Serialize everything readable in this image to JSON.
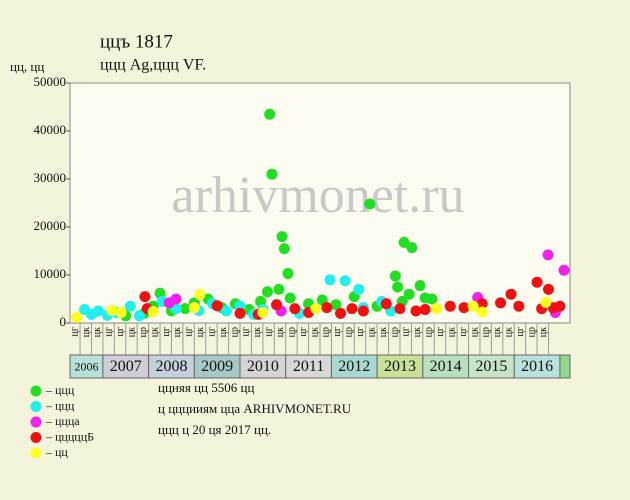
{
  "chart_data": {
    "type": "scatter",
    "title": "ццъ 1817",
    "subtitle": "ццц Ag,ццц VF.",
    "y_label": "цц, цц",
    "watermark": "arhivmonet.ru",
    "xlim": [
      2006.28,
      2017.22
    ],
    "ylim": [
      0,
      50000
    ],
    "yticks": [
      0,
      10000,
      20000,
      30000,
      40000,
      50000
    ],
    "xticks": [
      {
        "value": 2006.5,
        "label": "цг"
      },
      {
        "value": 2006.75,
        "label": "цк"
      },
      {
        "value": 2007.0,
        "label": "цк"
      },
      {
        "value": 2007.25,
        "label": "цг"
      },
      {
        "value": 2007.5,
        "label": "цг"
      },
      {
        "value": 2007.75,
        "label": "цк"
      },
      {
        "value": 2008.0,
        "label": "цр"
      },
      {
        "value": 2008.25,
        "label": "цк"
      },
      {
        "value": 2008.5,
        "label": "цг"
      },
      {
        "value": 2008.75,
        "label": "цк"
      },
      {
        "value": 2009.0,
        "label": "цг"
      },
      {
        "value": 2009.25,
        "label": "цк"
      },
      {
        "value": 2009.5,
        "label": "цг"
      },
      {
        "value": 2009.75,
        "label": "цк"
      },
      {
        "value": 2010.0,
        "label": "цр"
      },
      {
        "value": 2010.25,
        "label": "цг"
      },
      {
        "value": 2010.5,
        "label": "цк"
      },
      {
        "value": 2010.75,
        "label": "цг"
      },
      {
        "value": 2011.0,
        "label": "цк"
      },
      {
        "value": 2011.25,
        "label": "цр"
      },
      {
        "value": 2011.5,
        "label": "цг"
      },
      {
        "value": 2011.75,
        "label": "цк"
      },
      {
        "value": 2012.0,
        "label": "цр"
      },
      {
        "value": 2012.25,
        "label": "цг"
      },
      {
        "value": 2012.5,
        "label": "цр"
      },
      {
        "value": 2012.75,
        "label": "цг"
      },
      {
        "value": 2013.0,
        "label": "цк"
      },
      {
        "value": 2013.25,
        "label": "цк"
      },
      {
        "value": 2013.5,
        "label": "цр"
      },
      {
        "value": 2013.75,
        "label": "цг"
      },
      {
        "value": 2014.0,
        "label": "цк"
      },
      {
        "value": 2014.25,
        "label": "цр"
      },
      {
        "value": 2014.5,
        "label": "цг"
      },
      {
        "value": 2014.75,
        "label": "цк"
      },
      {
        "value": 2015.0,
        "label": "цг"
      },
      {
        "value": 2015.25,
        "label": "цк"
      },
      {
        "value": 2015.5,
        "label": "цр"
      },
      {
        "value": 2015.75,
        "label": "цк"
      },
      {
        "value": 2016.0,
        "label": "цк"
      },
      {
        "value": 2016.25,
        "label": "цг"
      },
      {
        "value": 2016.5,
        "label": "цр"
      },
      {
        "value": 2016.75,
        "label": "цк"
      }
    ],
    "years": [
      2006,
      2007,
      2008,
      2009,
      2010,
      2011,
      2012,
      2013,
      2014,
      2015,
      2016
    ],
    "year_colors": [
      "#b8e0d8",
      "#d0ccd8",
      "#c4d0dc",
      "#a8c8c8",
      "#d4d4d4",
      "#d8d8d8",
      "#a8d8d0",
      "#c8e098",
      "#b8e0c0",
      "#c8e4c8",
      "#b8e0dc"
    ],
    "end_color": "#8ed88e",
    "series": [
      {
        "name": "– ццц",
        "color": "#22dd22",
        "x": [
          2007.5,
          2007.9,
          2008.1,
          2008.25,
          2008.5,
          2008.8,
          2009.0,
          2009.3,
          2009.6,
          2009.9,
          2010.2,
          2010.45,
          2010.6,
          2010.65,
          2010.7,
          2010.85,
          2010.92,
          2010.97,
          2011.05,
          2011.1,
          2011.5,
          2011.8,
          2012.1,
          2012.5,
          2012.84,
          2013.0,
          2013.4,
          2013.45,
          2013.55,
          2013.59,
          2013.7,
          2013.76,
          2013.94,
          2014.05,
          2014.2
        ],
        "values": [
          1500,
          2000,
          3500,
          6200,
          2500,
          3000,
          4200,
          5000,
          3200,
          4000,
          2800,
          4500,
          6500,
          43500,
          31000,
          7000,
          18000,
          15500,
          10300,
          5200,
          4000,
          4800,
          3800,
          5500,
          24800,
          3500,
          9800,
          7500,
          4500,
          16800,
          6000,
          15700,
          7800,
          5200,
          5000
        ]
      },
      {
        "name": "– ццц",
        "color": "#22eeee",
        "x": [
          2006.6,
          2006.75,
          2006.9,
          2007.1,
          2007.3,
          2007.6,
          2007.8,
          2008.3,
          2008.6,
          2009.1,
          2009.4,
          2009.7,
          2010.0,
          2010.3,
          2010.5,
          2011.3,
          2011.97,
          2012.3,
          2012.6,
          2012.7,
          2013.1,
          2013.3
        ],
        "values": [
          2800,
          1800,
          2500,
          1600,
          2200,
          3500,
          1500,
          4500,
          3000,
          2600,
          4000,
          2500,
          3500,
          1800,
          2800,
          2000,
          9000,
          8800,
          7000,
          3200,
          4500,
          2500
        ]
      },
      {
        "name": "– ццца",
        "color": "#ee22ee",
        "x": [
          2008.45,
          2008.6,
          2010.9,
          2015.2,
          2016.74,
          2016.9,
          2017.09
        ],
        "values": [
          4200,
          5000,
          2500,
          5300,
          14200,
          2200,
          11000
        ]
      },
      {
        "name": "– цццццБ",
        "color": "#ee1111",
        "x": [
          2007.92,
          2007.97,
          2009.5,
          2010.0,
          2010.4,
          2010.8,
          2011.2,
          2011.5,
          2011.9,
          2012.2,
          2012.45,
          2012.7,
          2013.2,
          2013.5,
          2013.85,
          2014.05,
          2014.6,
          2014.9,
          2015.3,
          2015.7,
          2015.93,
          2016.1,
          2016.5,
          2016.6,
          2016.75,
          2016.85,
          2017.0
        ],
        "values": [
          5500,
          3000,
          3600,
          2000,
          1800,
          3800,
          3000,
          2200,
          3200,
          2000,
          3000,
          2500,
          4000,
          3000,
          2500,
          2800,
          3500,
          3200,
          4000,
          4200,
          6000,
          3500,
          8500,
          3000,
          7000,
          3200,
          3500
        ]
      },
      {
        "name": "– цц",
        "color": "#ffff22",
        "x": [
          2006.43,
          2007.2,
          2007.4,
          2008.1,
          2009.12,
          2009.0,
          2010.5,
          2011.66,
          2014.3,
          2015.1,
          2015.3,
          2016.69
        ],
        "values": [
          1200,
          2600,
          2200,
          2400,
          5900,
          3200,
          2200,
          3000,
          3000,
          3500,
          2300,
          4300
        ]
      }
    ],
    "notes": [
      "ццняя цц 5506 цц",
      "ц цццииям цца ARHIVMONET.RU",
      "ццц ц 20 ця 2017 цц."
    ]
  }
}
